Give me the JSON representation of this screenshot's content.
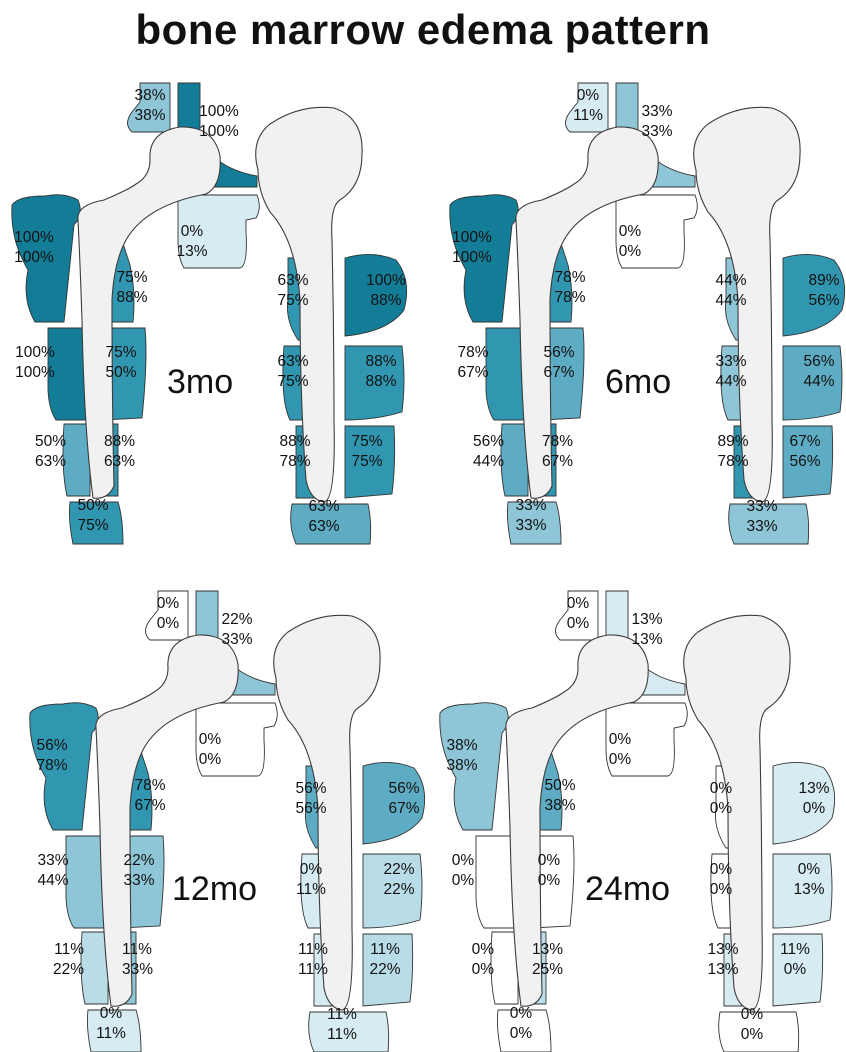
{
  "title": "bone marrow edema pattern",
  "colors": {
    "100": "#137d98",
    "75": "#3196b0",
    "50": "#5eacc4",
    "33": "#8fc6d7",
    "20": "#b8dce8",
    "10": "#d7ecf2",
    "0": "#ffffff",
    "bone": "#f1f1f1",
    "outline": "#333333"
  },
  "panels": [
    {
      "timepoint": "3mo",
      "zones": {
        "z1": [
          "38%",
          "38%"
        ],
        "z8": [
          "100%",
          "100%"
        ],
        "z2": [
          "0%",
          "13%"
        ],
        "z7": [
          "100%",
          "100%"
        ],
        "z3": [
          "75%",
          "88%"
        ],
        "z6": [
          "100%",
          "100%"
        ],
        "z4": [
          "75%",
          "50%"
        ],
        "z5": [
          "50%",
          "63%"
        ],
        "z5b": [
          "88%",
          "63%"
        ],
        "tip": [
          "50%",
          "75%"
        ],
        "l1": [
          "63%",
          "75%"
        ],
        "r1": [
          "100%",
          "88%"
        ],
        "l2": [
          "63%",
          "75%"
        ],
        "r2": [
          "88%",
          "88%"
        ],
        "l3": [
          "88%",
          "78%"
        ],
        "r3": [
          "75%",
          "75%"
        ],
        "ltip": [
          "63%",
          "63%"
        ]
      }
    },
    {
      "timepoint": "6mo",
      "zones": {
        "z1": [
          "0%",
          "11%"
        ],
        "z8": [
          "33%",
          "33%"
        ],
        "z2": [
          "0%",
          "0%"
        ],
        "z7": [
          "100%",
          "100%"
        ],
        "z3": [
          "78%",
          "78%"
        ],
        "z6": [
          "78%",
          "67%"
        ],
        "z4": [
          "56%",
          "67%"
        ],
        "z5": [
          "56%",
          "44%"
        ],
        "z5b": [
          "78%",
          "67%"
        ],
        "tip": [
          "33%",
          "33%"
        ],
        "l1": [
          "44%",
          "44%"
        ],
        "r1": [
          "89%",
          "56%"
        ],
        "l2": [
          "33%",
          "44%"
        ],
        "r2": [
          "56%",
          "44%"
        ],
        "l3": [
          "89%",
          "78%"
        ],
        "r3": [
          "67%",
          "56%"
        ],
        "ltip": [
          "33%",
          "33%"
        ]
      }
    },
    {
      "timepoint": "12mo",
      "zones": {
        "z1": [
          "0%",
          "0%"
        ],
        "z8": [
          "22%",
          "33%"
        ],
        "z2": [
          "0%",
          "0%"
        ],
        "z7": [
          "56%",
          "78%"
        ],
        "z3": [
          "78%",
          "67%"
        ],
        "z6": [
          "33%",
          "44%"
        ],
        "z4": [
          "22%",
          "33%"
        ],
        "z5": [
          "11%",
          "22%"
        ],
        "z5b": [
          "11%",
          "33%"
        ],
        "tip": [
          "0%",
          "11%"
        ],
        "l1": [
          "56%",
          "56%"
        ],
        "r1": [
          "56%",
          "67%"
        ],
        "l2": [
          "0%",
          "11%"
        ],
        "r2": [
          "22%",
          "22%"
        ],
        "l3": [
          "11%",
          "11%"
        ],
        "r3": [
          "11%",
          "22%"
        ],
        "ltip": [
          "11%",
          "11%"
        ]
      }
    },
    {
      "timepoint": "24mo",
      "zones": {
        "z1": [
          "0%",
          "0%"
        ],
        "z8": [
          "13%",
          "13%"
        ],
        "z2": [
          "0%",
          "0%"
        ],
        "z7": [
          "38%",
          "38%"
        ],
        "z3": [
          "50%",
          "38%"
        ],
        "z6": [
          "0%",
          "0%"
        ],
        "z4": [
          "0%",
          "0%"
        ],
        "z5": [
          "0%",
          "0%"
        ],
        "z5b": [
          "13%",
          "25%"
        ],
        "tip": [
          "0%",
          "0%"
        ],
        "l1": [
          "0%",
          "0%"
        ],
        "r1": [
          "13%",
          "0%"
        ],
        "l2": [
          "0%",
          "0%"
        ],
        "r2": [
          "0%",
          "13%"
        ],
        "l3": [
          "13%",
          "13%"
        ],
        "r3": [
          "11%",
          "0%"
        ],
        "ltip": [
          "0%",
          "0%"
        ]
      }
    }
  ]
}
